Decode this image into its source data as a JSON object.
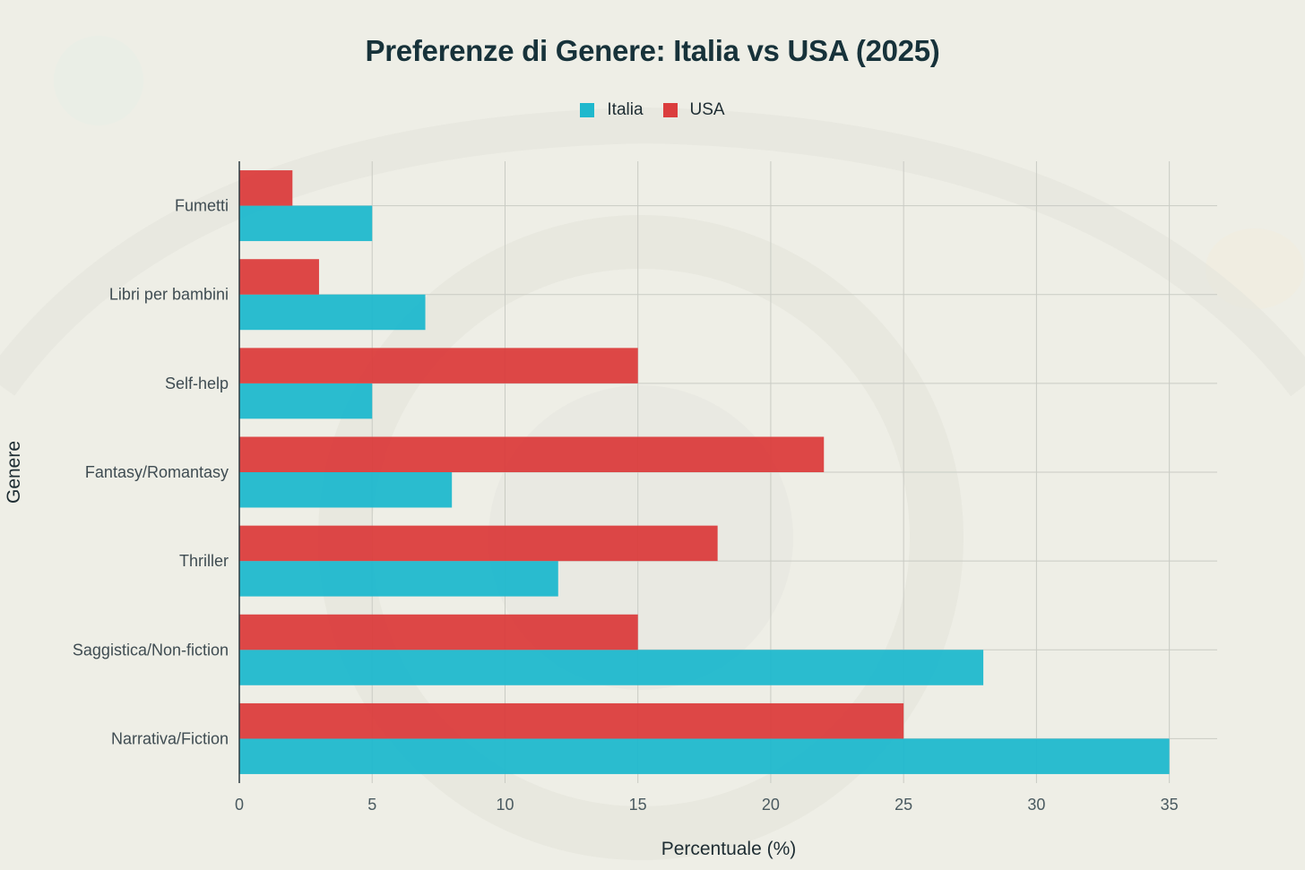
{
  "title": "Preferenze di Genere: Italia vs USA (2025)",
  "legend": {
    "italia": "Italia",
    "usa": "USA"
  },
  "colors": {
    "italia": "#1fb8cd",
    "usa": "#db3d3d",
    "background": "#eeeee6"
  },
  "chart_data": {
    "type": "bar",
    "orientation": "horizontal",
    "categories": [
      "Narrativa/Fiction",
      "Saggistica/Non-fiction",
      "Thriller",
      "Fantasy/Romantasy",
      "Self-help",
      "Libri per bambini",
      "Fumetti"
    ],
    "series": [
      {
        "name": "Italia",
        "values": [
          35,
          28,
          12,
          8,
          5,
          7,
          5
        ]
      },
      {
        "name": "USA",
        "values": [
          25,
          15,
          18,
          22,
          15,
          3,
          2
        ]
      }
    ],
    "xlabel": "Percentuale (%)",
    "ylabel": "Genere",
    "xlim": [
      0,
      36.8
    ],
    "xticks": [
      0,
      5,
      10,
      15,
      20,
      25,
      30,
      35
    ],
    "grid": true,
    "legend_position": "top-center"
  }
}
